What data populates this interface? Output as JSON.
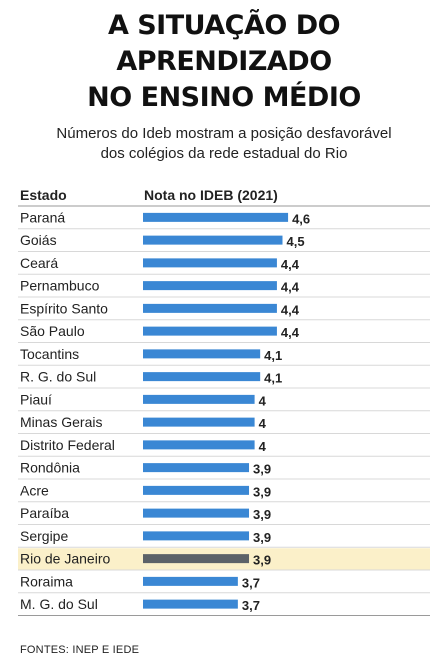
{
  "headline": {
    "line1": "A SITUAÇÃO DO",
    "line2": "APRENDIZADO",
    "line3": "NO ENSINO MÉDIO"
  },
  "subtitle": {
    "line1": "Números do Ideb mostram a posição desfavorável",
    "line2": "dos colégios da rede estadual do Rio"
  },
  "chart_data": {
    "type": "bar",
    "orientation": "horizontal",
    "column_headers": {
      "category": "Estado",
      "value": "Nota no IDEB (2021)"
    },
    "categories": [
      "Paraná",
      "Goiás",
      "Ceará",
      "Pernambuco",
      "Espírito Santo",
      "São Paulo",
      "Tocantins",
      "R. G. do Sul",
      "Piauí",
      "Minas Gerais",
      "Distrito Federal",
      "Rondônia",
      "Acre",
      "Paraíba",
      "Sergipe",
      "Rio de Janeiro",
      "Roraima",
      "M. G. do Sul"
    ],
    "values": [
      4.6,
      4.5,
      4.4,
      4.4,
      4.4,
      4.4,
      4.1,
      4.1,
      4.0,
      4.0,
      4.0,
      3.9,
      3.9,
      3.9,
      3.9,
      3.9,
      3.7,
      3.7
    ],
    "value_labels": [
      "4,6",
      "4,5",
      "4,4",
      "4,4",
      "4,4",
      "4,4",
      "4,1",
      "4,1",
      "4",
      "4",
      "4",
      "3,9",
      "3,9",
      "3,9",
      "3,9",
      "3,9",
      "3,7",
      "3,7"
    ],
    "highlight": "Rio de Janeiro",
    "colors": {
      "bar": "#3a87d4",
      "highlight_bar": "#5c6268",
      "highlight_row": "#fbf0c9"
    }
  },
  "footer": {
    "sources": "FONTES: INEP E IEDE"
  }
}
